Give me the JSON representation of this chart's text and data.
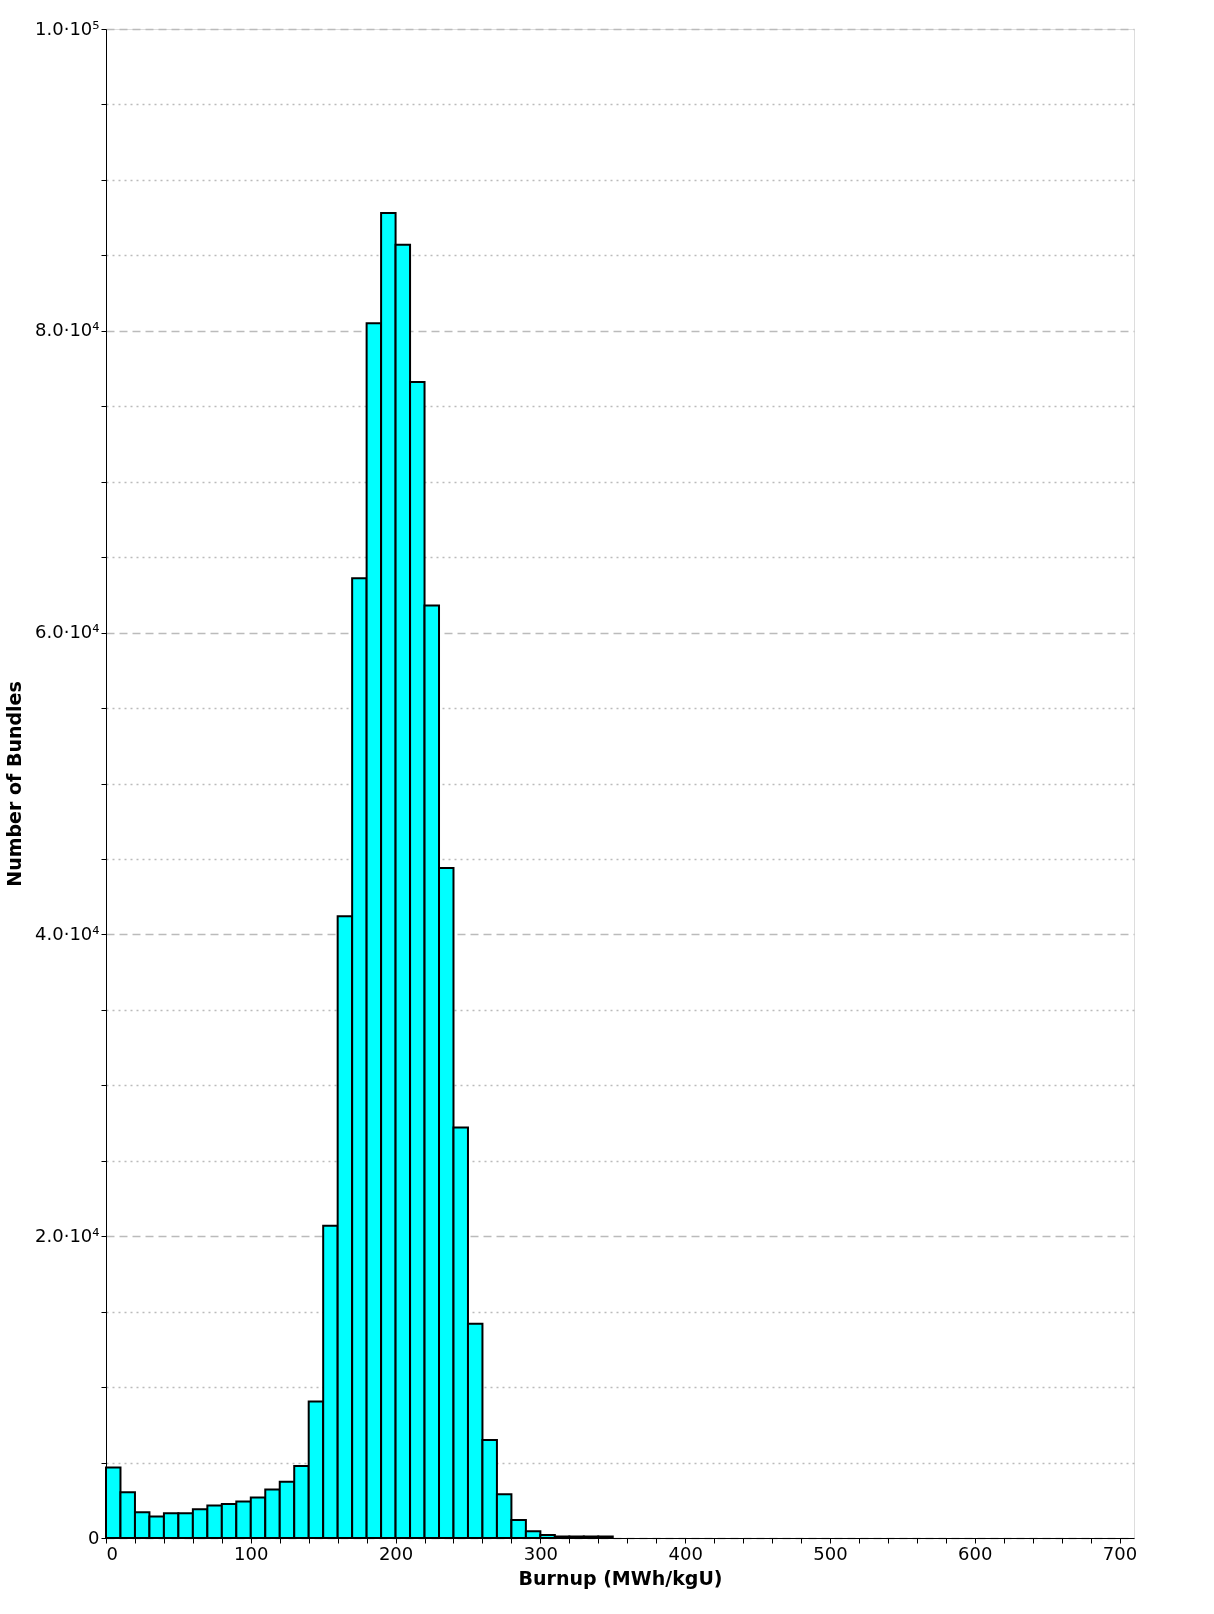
{
  "chart_data": {
    "type": "histogram",
    "xlabel": "Burnup (MWh/kgU)",
    "ylabel": "Number of Bundles",
    "bins": [
      0,
      10,
      20,
      30,
      40,
      50,
      60,
      70,
      80,
      90,
      100,
      110,
      120,
      130,
      140,
      150,
      160,
      170,
      180,
      190,
      200,
      210,
      220,
      230,
      240,
      250,
      260,
      270,
      280,
      290,
      300,
      310,
      320,
      330,
      340,
      350
    ],
    "values": [
      4670,
      3030,
      1710,
      1430,
      1640,
      1640,
      1900,
      2160,
      2250,
      2420,
      2680,
      3220,
      3730,
      4770,
      9040,
      20700,
      41200,
      63600,
      80500,
      87800,
      85700,
      76600,
      61800,
      44400,
      27200,
      14200,
      6500,
      2900,
      1200,
      450,
      200,
      100,
      100,
      100,
      100
    ],
    "color": "#00ffff",
    "xlim": [
      0,
      710
    ],
    "xticks": [
      0,
      {
        "value": 20,
        "label": null
      },
      {
        "value": 40,
        "label": null
      },
      {
        "value": 60,
        "label": null
      },
      {
        "value": 80,
        "label": null
      },
      100,
      {
        "value": 120,
        "label": null
      },
      {
        "value": 140,
        "label": null
      },
      {
        "value": 160,
        "label": null
      },
      {
        "value": 180,
        "label": null
      },
      200,
      {
        "value": 220,
        "label": null
      },
      {
        "value": 240,
        "label": null
      },
      {
        "value": 260,
        "label": null
      },
      {
        "value": 280,
        "label": null
      },
      300,
      {
        "value": 320,
        "label": null
      },
      {
        "value": 340,
        "label": null
      },
      {
        "value": 360,
        "label": null
      },
      {
        "value": 380,
        "label": null
      },
      400,
      {
        "value": 420,
        "label": null
      },
      {
        "value": 440,
        "label": null
      },
      {
        "value": 460,
        "label": null
      },
      {
        "value": 480,
        "label": null
      },
      500,
      {
        "value": 520,
        "label": null
      },
      {
        "value": 540,
        "label": null
      },
      {
        "value": 560,
        "label": null
      },
      {
        "value": 580,
        "label": null
      },
      600,
      {
        "value": 620,
        "label": null
      },
      {
        "value": 640,
        "label": null
      },
      {
        "value": 660,
        "label": null
      },
      {
        "value": 680,
        "label": null
      },
      700
    ],
    "ylim": [
      0,
      100000
    ],
    "yticks": [
      0,
      {
        "value": 5000,
        "label": null
      },
      {
        "value": 10000,
        "label": null
      },
      {
        "value": 15000,
        "label": null
      },
      {
        "value": 20000,
        "label": "2.0·10⁴"
      },
      {
        "value": 25000,
        "label": null
      },
      {
        "value": 30000,
        "label": null
      },
      {
        "value": 35000,
        "label": null
      },
      {
        "value": 40000,
        "label": "4.0·10⁴"
      },
      {
        "value": 45000,
        "label": null
      },
      {
        "value": 50000,
        "label": null
      },
      {
        "value": 55000,
        "label": null
      },
      {
        "value": 60000,
        "label": "6.0·10⁴"
      },
      {
        "value": 65000,
        "label": null
      },
      {
        "value": 70000,
        "label": null
      },
      {
        "value": 75000,
        "label": null
      },
      {
        "value": 80000,
        "label": "8.0·10⁴"
      },
      {
        "value": 85000,
        "label": null
      },
      {
        "value": 90000,
        "label": null
      },
      {
        "value": 95000,
        "label": null
      },
      {
        "value": 100000,
        "label": "1.0·10⁵"
      }
    ],
    "grid": "y"
  }
}
